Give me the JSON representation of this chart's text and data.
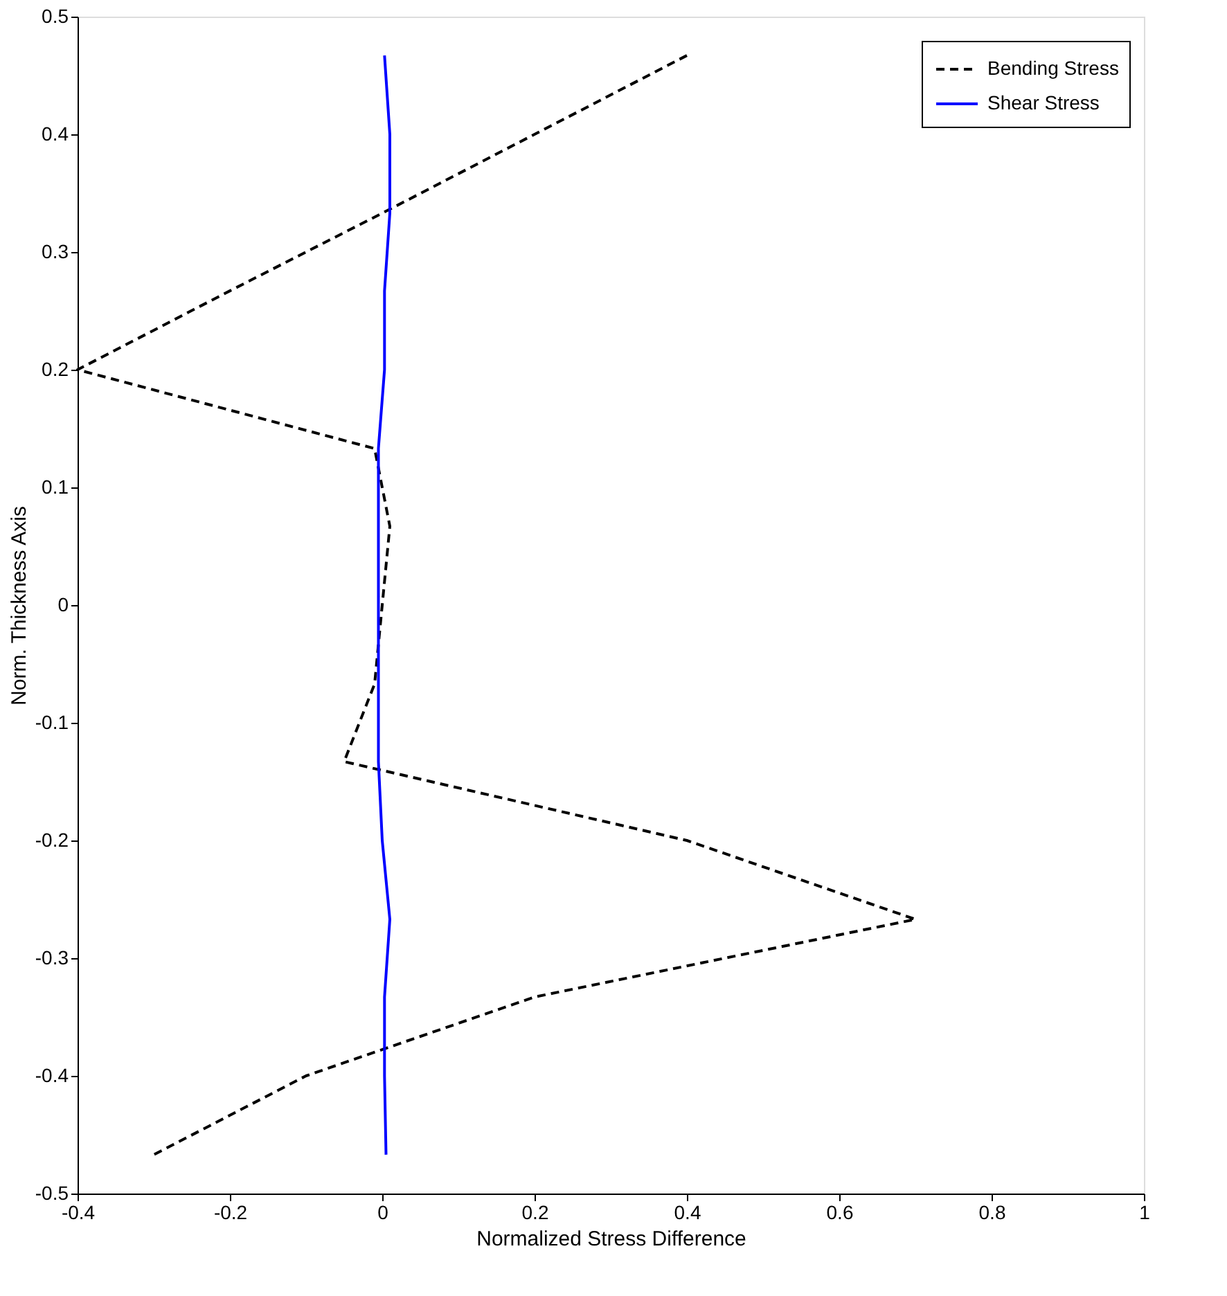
{
  "chart_data": {
    "type": "line",
    "xlabel": "Normalized Stress Difference",
    "ylabel": "Norm. Thickness Axis",
    "xlim": [
      -0.4,
      1
    ],
    "xticks": [
      -0.4,
      -0.2,
      0,
      0.2,
      0.4,
      0.6,
      0.8,
      1
    ],
    "ylim": [
      -0.5,
      0.5
    ],
    "yticks": [
      -0.5,
      -0.4,
      -0.3,
      -0.2,
      -0.1,
      0,
      0.1,
      0.2,
      0.3,
      0.4,
      0.5
    ],
    "grid": false,
    "legend": "top right",
    "marker": "none",
    "series": [
      {
        "name": "Bending Stress",
        "color": "#000000",
        "line_style": "dashed",
        "x": [
          0.4,
          0.2,
          0,
          -0.2,
          -0.4,
          -0.01,
          0.01,
          0,
          -0.01,
          -0.05,
          0.4,
          0.7,
          0.2,
          -0.1,
          -0.3
        ],
        "values": [
          0.467,
          0.4,
          0.333,
          0.267,
          0.2,
          0.133,
          0.067,
          0,
          -0.067,
          -0.133,
          -0.2,
          -0.267,
          -0.333,
          -0.4,
          -0.467
        ]
      },
      {
        "name": "Shear Stress",
        "color": "#0000ff",
        "line_style": "solid",
        "x": [
          0.003,
          0.01,
          0.01,
          0.003,
          0.003,
          -0.005,
          -0.005,
          -0.005,
          -0.005,
          -0.005,
          0,
          0.01,
          0.003,
          0.003,
          0.005
        ],
        "values": [
          0.467,
          0.4,
          0.333,
          0.267,
          0.2,
          0.133,
          0.067,
          0,
          -0.067,
          -0.133,
          -0.2,
          -0.267,
          -0.333,
          -0.4,
          -0.467
        ]
      }
    ]
  }
}
